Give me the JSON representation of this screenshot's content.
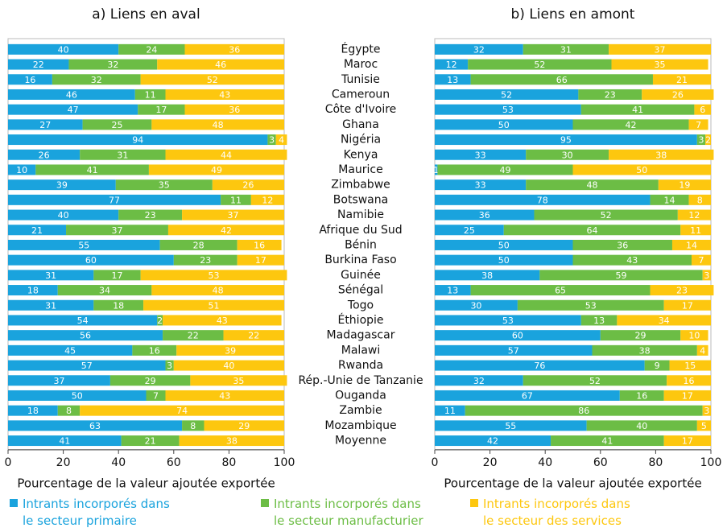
{
  "chart_data": [
    {
      "type": "stacked-bar-horizontal",
      "title": "a) Liens en aval",
      "categories": [
        "Égypte",
        "Maroc",
        "Tunisie",
        "Cameroun",
        "Côte d'Ivoire",
        "Ghana",
        "Nigéria",
        "Kenya",
        "Maurice",
        "Zimbabwe",
        "Botswana",
        "Namibie",
        "Afrique du Sud",
        "Bénin",
        "Burkina Faso",
        "Guinée",
        "Sénégal",
        "Togo",
        "Éthiopie",
        "Madagascar",
        "Malawi",
        "Rwanda",
        "Rép.-Unie de Tanzanie",
        "Ouganda",
        "Zambie",
        "Mozambique",
        "Moyenne"
      ],
      "series": [
        {
          "name": "Intrants incorporés dans le secteur primaire",
          "color": "#1aa3dd",
          "values": [
            40,
            22,
            16,
            46,
            47,
            27,
            94,
            26,
            10,
            39,
            77,
            40,
            21,
            55,
            60,
            31,
            18,
            31,
            54,
            56,
            45,
            57,
            37,
            50,
            18,
            63,
            41
          ]
        },
        {
          "name": "Intrants incorporés dans le secteur manufacturier",
          "color": "#6cbd45",
          "values": [
            24,
            32,
            32,
            11,
            17,
            25,
            3,
            31,
            41,
            35,
            11,
            23,
            37,
            28,
            23,
            17,
            34,
            18,
            2,
            22,
            16,
            3,
            29,
            7,
            8,
            8,
            21
          ]
        },
        {
          "name": "Intrants incorporés dans le secteur des services",
          "color": "#fdc70f",
          "values": [
            36,
            46,
            52,
            43,
            36,
            48,
            4,
            44,
            49,
            26,
            12,
            37,
            42,
            16,
            17,
            53,
            48,
            51,
            43,
            22,
            39,
            40,
            35,
            43,
            74,
            29,
            38
          ]
        }
      ],
      "xlabel": "Pourcentage de la valeur ajoutée exportée",
      "xlim": [
        0,
        100
      ],
      "xticks": [
        0,
        20,
        40,
        60,
        80,
        100
      ]
    },
    {
      "type": "stacked-bar-horizontal",
      "title": "b) Liens en amont",
      "series": [
        {
          "color": "#1aa3dd",
          "values": [
            32,
            12,
            13,
            52,
            53,
            50,
            95,
            33,
            1,
            33,
            78,
            36,
            25,
            50,
            50,
            38,
            13,
            30,
            53,
            60,
            57,
            76,
            32,
            67,
            11,
            55,
            42
          ]
        },
        {
          "color": "#6cbd45",
          "values": [
            31,
            52,
            66,
            23,
            41,
            42,
            3,
            30,
            49,
            48,
            14,
            52,
            64,
            36,
            43,
            59,
            65,
            53,
            13,
            29,
            38,
            9,
            52,
            16,
            86,
            40,
            41
          ]
        },
        {
          "color": "#fdc70f",
          "values": [
            37,
            35,
            21,
            26,
            6,
            7,
            2,
            38,
            50,
            19,
            8,
            12,
            11,
            14,
            7,
            3,
            23,
            17,
            34,
            10,
            4,
            15,
            16,
            17,
            3,
            5,
            17
          ]
        }
      ],
      "xlabel": "Pourcentage de la valeur ajoutée exportée",
      "xlim": [
        0,
        100
      ],
      "xticks": [
        0,
        20,
        40,
        60,
        80,
        100
      ]
    }
  ]
}
